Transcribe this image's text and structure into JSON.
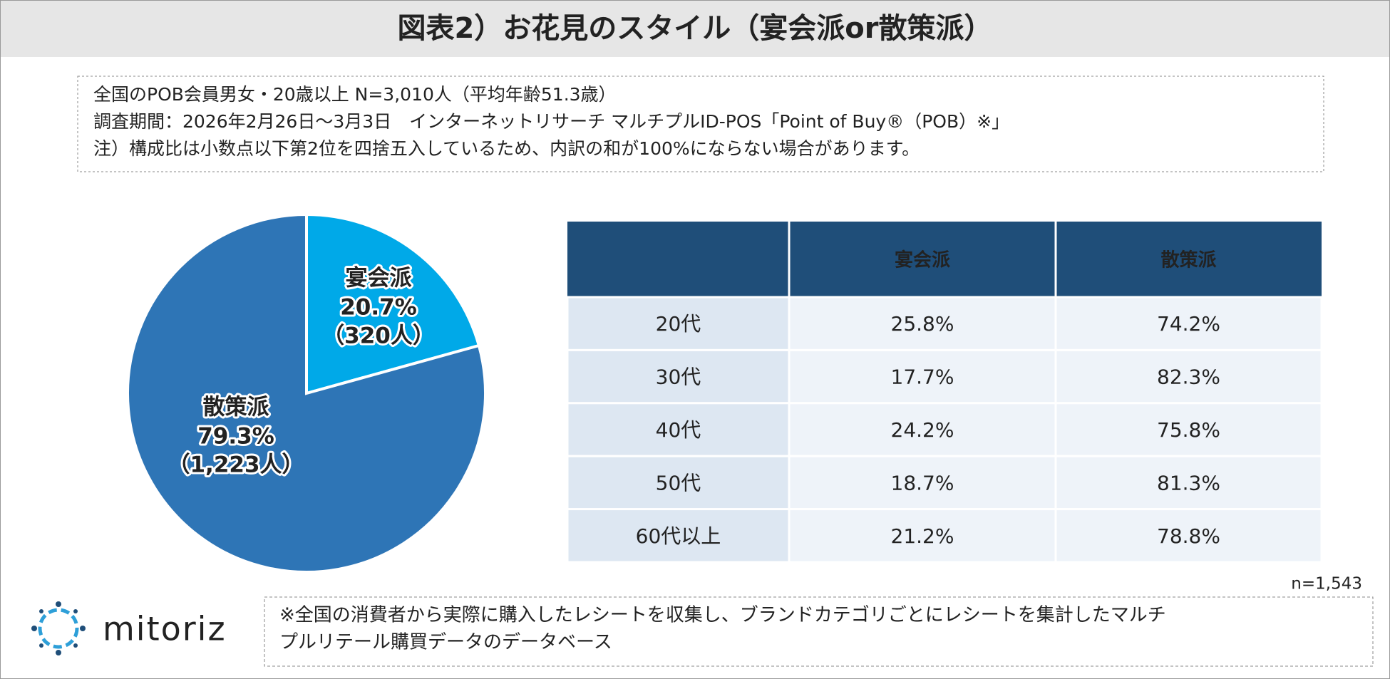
{
  "title": "図表2）お花見のスタイル（宴会派or散策派）",
  "notes": [
    "全国のPOB会員男女・20歳以上 N=3,010人（平均年齢51.3歳）",
    "調査期間：2026年2月26日～3月3日　インターネットリサーチ マルチプルID-POS「Point of Buy®（POB）※」",
    "注）構成比は小数点以下第2位を四捨五入しているため、内訳の和が100%にならない場合があります。"
  ],
  "chart_data": {
    "type": "pie",
    "categories": [
      "宴会派",
      "散策派"
    ],
    "values": [
      20.7,
      79.3
    ],
    "value_labels": [
      "20.7%",
      "79.3%"
    ],
    "counts": [
      320,
      1223
    ],
    "count_labels": [
      "（320人）",
      "（1,223人）"
    ],
    "colors": [
      "#00a9e8",
      "#2e75b6"
    ]
  },
  "table": {
    "header": [
      "宴会派",
      "散策派"
    ],
    "rows": [
      [
        "20代",
        "25.8%",
        "74.2%"
      ],
      [
        "30代",
        "17.7%",
        "82.3%"
      ],
      [
        "40代",
        "24.2%",
        "75.8%"
      ],
      [
        "50代",
        "18.7%",
        "81.3%"
      ],
      [
        "60代以上",
        "21.2%",
        "78.8%"
      ]
    ],
    "sample": "n=1,543"
  },
  "footnote": [
    "※全国の消費者から実際に購入したレシートを収集し、ブランドカテゴリごとにレシートを集計したマルチ",
    "プルリテール購買データのデータベース"
  ],
  "logo": "mitoriz"
}
